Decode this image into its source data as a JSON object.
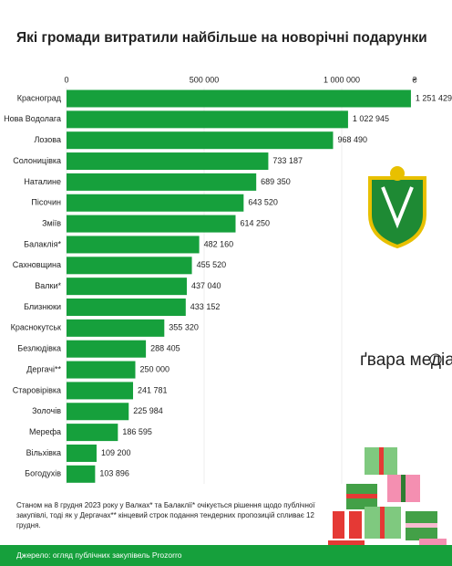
{
  "chart_data": {
    "type": "hbar",
    "title": "Які громади витратили найбільше на новорічні подарунки",
    "unit_label": "₴",
    "categories": [
      "Красноград",
      "Нова Водолага",
      "Лозова",
      "Солоницівка",
      "Наталине",
      "Пісочин",
      "Зміїв",
      "Балаклія*",
      "Сахновщина",
      "Валки*",
      "Близнюки",
      "Краснокутськ",
      "Безлюдівка",
      "Дергачі**",
      "Старовірівка",
      "Золочів",
      "Мерефа",
      "Вільхівка",
      "Богодухів"
    ],
    "values": [
      1251429,
      1022945,
      968490,
      733187,
      689350,
      643520,
      614250,
      482160,
      455520,
      437040,
      433152,
      355320,
      288405,
      250000,
      241781,
      225984,
      186595,
      109200,
      103896
    ],
    "value_labels": [
      "1 251 429",
      "1 022 945",
      "968 490",
      "733 187",
      "689 350",
      "643 520",
      "614 250",
      "482 160",
      "455 520",
      "437 040",
      "433 152",
      "355 320",
      "288 405",
      "250 000",
      "241 781",
      "225 984",
      "186 595",
      "109 200",
      "103 896"
    ],
    "color": "#16a03c",
    "xlim": [
      0,
      1250000
    ],
    "xticks": [
      0,
      {
        "value": 500000,
        "label": "500 000"
      },
      {
        "value": 1000000,
        "label": "1 000 000"
      }
    ],
    "grid": true,
    "logo": "ґвара медіа",
    "note": "Станом на 8 грудня 2023 року у Валках* та Балаклії* очікується рішення щодо публічної закупівлі, тоді як у Дергачах** кінцевий строк подання тендерних пропозицій спливає 12 грудня.",
    "source": "Джерело: огляд публічних закупівель Prozorro"
  }
}
